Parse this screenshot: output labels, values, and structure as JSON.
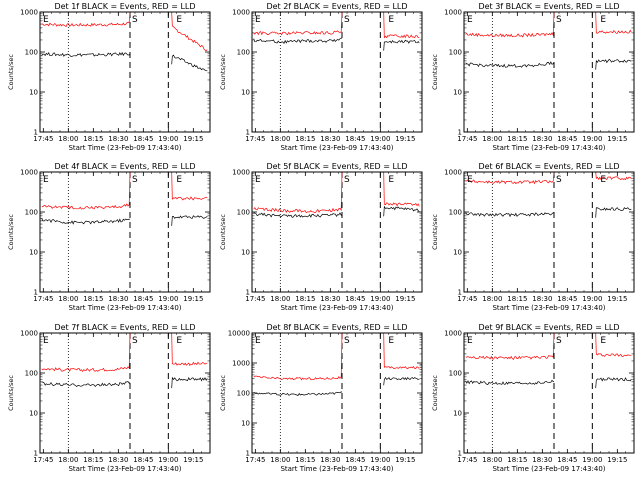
{
  "chart_data": [
    {
      "type": "line",
      "title": "Det 1f BLACK = Events, RED = LLD",
      "xlabel": "Start Time (23-Feb-09 17:43:40)",
      "ylabel": "Counts/sec",
      "yscale": "log",
      "ylim": [
        1,
        1000
      ],
      "xticks": [
        "17:45",
        "18:00",
        "18:15",
        "18:30",
        "18:45",
        "19:00",
        "19:15"
      ],
      "yticks": [
        "1",
        "10",
        "100",
        "1000"
      ],
      "annotations": [
        "E",
        "S",
        "E"
      ],
      "markers": {
        "dotted": [
          "18:00"
        ],
        "dashed": [
          "18:37",
          "19:00"
        ]
      },
      "series": [
        {
          "color": "#ff0000",
          "values": [
            500,
            470,
            480,
            490,
            520,
            430,
            100
          ]
        },
        {
          "color": "#000000",
          "values": [
            90,
            85,
            85,
            88,
            92,
            82,
            30
          ]
        }
      ]
    },
    {
      "type": "line",
      "title": "Det 2f BLACK = Events, RED = LLD",
      "xlabel": "Start Time (23-Feb-09 17:43:40)",
      "ylabel": "Counts/sec",
      "yscale": "log",
      "ylim": [
        1,
        1000
      ],
      "xticks": [
        "17:45",
        "18:00",
        "18:15",
        "18:30",
        "18:45",
        "19:00",
        "19:15"
      ],
      "yticks": [
        "1",
        "10",
        "100",
        "1000"
      ],
      "annotations": [
        "E",
        "S",
        "E"
      ],
      "markers": {
        "dotted": [
          "18:00"
        ],
        "dashed": [
          "18:37",
          "19:00"
        ]
      },
      "series": [
        {
          "color": "#ff0000",
          "values": [
            300,
            290,
            300,
            300,
            320,
            250,
            250
          ]
        },
        {
          "color": "#000000",
          "values": [
            200,
            180,
            190,
            190,
            220,
            180,
            180
          ]
        }
      ]
    },
    {
      "type": "line",
      "title": "Det 3f BLACK = Events, RED = LLD",
      "xlabel": "Start Time (23-Feb-09 17:43:40)",
      "ylabel": "Counts/sec",
      "yscale": "log",
      "ylim": [
        1,
        1000
      ],
      "xticks": [
        "17:45",
        "18:00",
        "18:15",
        "18:30",
        "18:45",
        "19:00",
        "19:15"
      ],
      "yticks": [
        "1",
        "10",
        "100",
        "1000"
      ],
      "annotations": [
        "E",
        "S",
        "E"
      ],
      "markers": {
        "dotted": [
          "18:00"
        ],
        "dashed": [
          "18:37",
          "19:00"
        ]
      },
      "series": [
        {
          "color": "#ff0000",
          "values": [
            280,
            260,
            260,
            270,
            290,
            320,
            320
          ]
        },
        {
          "color": "#000000",
          "values": [
            50,
            45,
            45,
            48,
            55,
            60,
            60
          ]
        }
      ]
    },
    {
      "type": "line",
      "title": "Det 4f BLACK = Events, RED = LLD",
      "xlabel": "Start Time (23-Feb-09 17:43:40)",
      "ylabel": "Counts/sec",
      "yscale": "log",
      "ylim": [
        1,
        1000
      ],
      "xticks": [
        "17:45",
        "18:00",
        "18:15",
        "18:30",
        "18:45",
        "19:00",
        "19:15"
      ],
      "yticks": [
        "1",
        "10",
        "100",
        "1000"
      ],
      "annotations": [
        "E",
        "S",
        "E"
      ],
      "markers": {
        "dotted": [
          "18:00"
        ],
        "dashed": [
          "18:37",
          "19:00"
        ]
      },
      "series": [
        {
          "color": "#ff0000",
          "values": [
            140,
            130,
            130,
            135,
            150,
            220,
            220
          ]
        },
        {
          "color": "#000000",
          "values": [
            65,
            55,
            55,
            60,
            65,
            75,
            75
          ]
        }
      ]
    },
    {
      "type": "line",
      "title": "Det 5f BLACK = Events, RED = LLD",
      "xlabel": "Start Time (23-Feb-09 17:43:40)",
      "ylabel": "Counts/sec",
      "yscale": "log",
      "ylim": [
        1,
        1000
      ],
      "xticks": [
        "17:45",
        "18:00",
        "18:15",
        "18:30",
        "18:45",
        "19:00",
        "19:15"
      ],
      "yticks": [
        "1",
        "10",
        "100",
        "1000"
      ],
      "annotations": [
        "E",
        "S",
        "E"
      ],
      "markers": {
        "dotted": [
          "18:00"
        ],
        "dashed": [
          "18:37",
          "19:00"
        ]
      },
      "series": [
        {
          "color": "#ff0000",
          "values": [
            120,
            110,
            105,
            110,
            120,
            160,
            150
          ]
        },
        {
          "color": "#000000",
          "values": [
            90,
            80,
            80,
            82,
            88,
            130,
            110
          ]
        }
      ]
    },
    {
      "type": "line",
      "title": "Det 6f BLACK = Events, RED = LLD",
      "xlabel": "Start Time (23-Feb-09 17:43:40)",
      "ylabel": "Counts/sec",
      "yscale": "log",
      "ylim": [
        1,
        1000
      ],
      "xticks": [
        "17:45",
        "18:00",
        "18:15",
        "18:30",
        "18:45",
        "19:00",
        "19:15"
      ],
      "yticks": [
        "1",
        "10",
        "100",
        "1000"
      ],
      "annotations": [
        "E",
        "S",
        "E"
      ],
      "markers": {
        "dotted": [
          "18:00"
        ],
        "dashed": [
          "18:37",
          "19:00"
        ]
      },
      "series": [
        {
          "color": "#ff0000",
          "values": [
            600,
            560,
            560,
            570,
            580,
            700,
            700
          ]
        },
        {
          "color": "#000000",
          "values": [
            90,
            85,
            85,
            88,
            92,
            120,
            120
          ]
        }
      ]
    },
    {
      "type": "line",
      "title": "Det 7f BLACK = Events, RED = LLD",
      "xlabel": "Start Time (23-Feb-09 17:43:40)",
      "ylabel": "Counts/sec",
      "yscale": "log",
      "ylim": [
        1,
        1000
      ],
      "xticks": [
        "17:45",
        "18:00",
        "18:15",
        "18:30",
        "18:45",
        "19:00",
        "19:15"
      ],
      "yticks": [
        "1",
        "10",
        "100",
        "1000"
      ],
      "annotations": [
        "E",
        "S",
        "E"
      ],
      "markers": {
        "dotted": [
          "18:00"
        ],
        "dashed": [
          "18:37",
          "19:00"
        ]
      },
      "series": [
        {
          "color": "#ff0000",
          "values": [
            130,
            120,
            120,
            125,
            140,
            170,
            170
          ]
        },
        {
          "color": "#000000",
          "values": [
            55,
            50,
            50,
            52,
            58,
            70,
            70
          ]
        }
      ]
    },
    {
      "type": "line",
      "title": "Det 8f BLACK = Events, RED = LLD",
      "xlabel": "Start Time (23-Feb-09 17:43:40)",
      "ylabel": "Counts/sec",
      "yscale": "log",
      "ylim": [
        1,
        10000
      ],
      "xticks": [
        "17:45",
        "18:00",
        "18:15",
        "18:30",
        "18:45",
        "19:00",
        "19:15"
      ],
      "yticks": [
        "1",
        "10",
        "100",
        "1000",
        "10000"
      ],
      "annotations": [
        "E",
        "S",
        "E"
      ],
      "markers": {
        "dotted": [
          "18:00"
        ],
        "dashed": [
          "18:37",
          "19:00"
        ]
      },
      "series": [
        {
          "color": "#ff0000",
          "values": [
            350,
            300,
            300,
            310,
            330,
            700,
            700
          ]
        },
        {
          "color": "#000000",
          "values": [
            100,
            90,
            90,
            95,
            105,
            300,
            300
          ]
        }
      ]
    },
    {
      "type": "line",
      "title": "Det 9f BLACK = Events, RED = LLD",
      "xlabel": "Start Time (23-Feb-09 17:43:40)",
      "ylabel": "Counts/sec",
      "yscale": "log",
      "ylim": [
        1,
        1000
      ],
      "xticks": [
        "17:45",
        "18:00",
        "18:15",
        "18:30",
        "18:45",
        "19:00",
        "19:15"
      ],
      "yticks": [
        "1",
        "10",
        "100",
        "1000"
      ],
      "annotations": [
        "E",
        "S",
        "E"
      ],
      "markers": {
        "dotted": [
          "18:00"
        ],
        "dashed": [
          "18:37",
          "19:00"
        ]
      },
      "series": [
        {
          "color": "#ff0000",
          "values": [
            260,
            240,
            240,
            245,
            260,
            280,
            280
          ]
        },
        {
          "color": "#000000",
          "values": [
            60,
            55,
            55,
            57,
            62,
            70,
            70
          ]
        }
      ]
    }
  ]
}
